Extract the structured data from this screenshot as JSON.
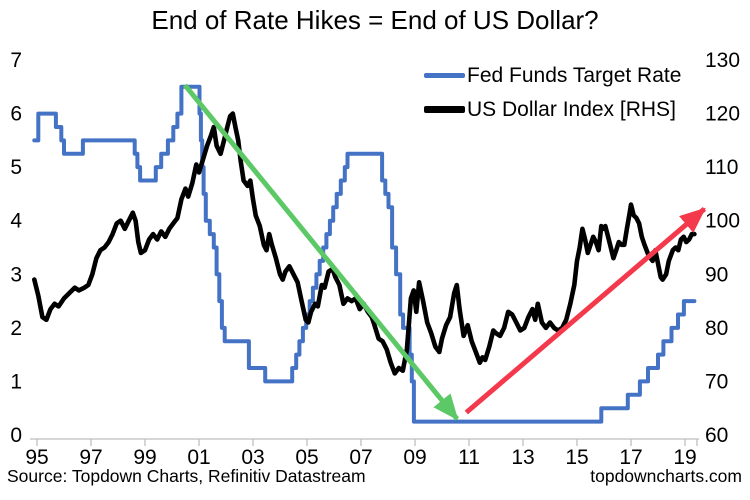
{
  "title": "End of Rate Hikes = End of US Dollar?",
  "footer": {
    "source_text": "Source: Topdown Charts, Refinitiv Datastream",
    "watermark": "topdowncharts.com"
  },
  "chart_data": {
    "type": "line",
    "title": "End of Rate Hikes = End of US Dollar?",
    "legend_position": "top-right",
    "grid": false,
    "axis_color": "#BFBFBF",
    "legend": [
      {
        "label": "Fed Funds Target Rate",
        "color": "#4472C4",
        "thickness": 4.5
      },
      {
        "label": "US Dollar Index [RHS]",
        "color": "#000000",
        "thickness": 7
      }
    ],
    "x_axis": {
      "tick_labels": [
        "95",
        "97",
        "99",
        "01",
        "03",
        "05",
        "07",
        "09",
        "11",
        "13",
        "15",
        "17",
        "19"
      ],
      "tick_years": [
        1995,
        1997,
        1999,
        2001,
        2003,
        2005,
        2007,
        2009,
        2011,
        2013,
        2015,
        2017,
        2019
      ],
      "range": [
        1994.9,
        2019.6
      ]
    },
    "y_left": {
      "ticks": [
        0,
        1,
        2,
        3,
        4,
        5,
        6,
        7
      ],
      "min": 0,
      "max": 7
    },
    "y_right": {
      "ticks": [
        60,
        70,
        80,
        90,
        100,
        110,
        120,
        130
      ],
      "min": 60,
      "max": 130
    },
    "series": [
      {
        "name": "Fed Funds Target Rate",
        "axis": "left",
        "color": "#4472C4",
        "width": 4,
        "step": true,
        "points": [
          [
            1994.9,
            5.5
          ],
          [
            1995.05,
            6.0
          ],
          [
            1995.7,
            5.75
          ],
          [
            1995.9,
            5.5
          ],
          [
            1996.0,
            5.25
          ],
          [
            1996.7,
            5.5
          ],
          [
            1998.62,
            5.25
          ],
          [
            1998.72,
            5.0
          ],
          [
            1998.82,
            4.75
          ],
          [
            1999.4,
            5.0
          ],
          [
            1999.6,
            5.25
          ],
          [
            1999.85,
            5.5
          ],
          [
            2000.05,
            5.75
          ],
          [
            2000.2,
            6.0
          ],
          [
            2000.35,
            6.5
          ],
          [
            2001.02,
            6.0
          ],
          [
            2001.07,
            5.5
          ],
          [
            2001.12,
            5.0
          ],
          [
            2001.17,
            4.5
          ],
          [
            2001.25,
            4.0
          ],
          [
            2001.4,
            3.75
          ],
          [
            2001.55,
            3.5
          ],
          [
            2001.65,
            3.0
          ],
          [
            2001.75,
            2.5
          ],
          [
            2001.85,
            2.0
          ],
          [
            2001.95,
            1.75
          ],
          [
            2002.85,
            1.25
          ],
          [
            2003.45,
            1.0
          ],
          [
            2004.45,
            1.25
          ],
          [
            2004.6,
            1.5
          ],
          [
            2004.72,
            1.75
          ],
          [
            2004.85,
            2.0
          ],
          [
            2004.97,
            2.25
          ],
          [
            2005.1,
            2.5
          ],
          [
            2005.22,
            2.75
          ],
          [
            2005.35,
            3.0
          ],
          [
            2005.47,
            3.25
          ],
          [
            2005.6,
            3.5
          ],
          [
            2005.72,
            3.75
          ],
          [
            2005.85,
            4.0
          ],
          [
            2005.97,
            4.25
          ],
          [
            2006.1,
            4.5
          ],
          [
            2006.25,
            4.75
          ],
          [
            2006.4,
            5.0
          ],
          [
            2006.5,
            5.25
          ],
          [
            2007.78,
            4.75
          ],
          [
            2007.9,
            4.5
          ],
          [
            2008.02,
            4.25
          ],
          [
            2008.15,
            3.5
          ],
          [
            2008.3,
            3.0
          ],
          [
            2008.45,
            2.25
          ],
          [
            2008.56,
            2.0
          ],
          [
            2008.8,
            1.5
          ],
          [
            2008.88,
            1.0
          ],
          [
            2008.96,
            0.25
          ],
          [
            2015.9,
            0.5
          ],
          [
            2016.88,
            0.75
          ],
          [
            2017.33,
            1.0
          ],
          [
            2017.63,
            1.25
          ],
          [
            2018.0,
            1.5
          ],
          [
            2018.2,
            1.75
          ],
          [
            2018.5,
            2.0
          ],
          [
            2018.74,
            2.25
          ],
          [
            2018.96,
            2.5
          ],
          [
            2019.35,
            2.5
          ]
        ]
      },
      {
        "name": "US Dollar Index",
        "axis": "right",
        "color": "#000000",
        "width": 4.6,
        "step": false,
        "points": [
          [
            1994.9,
            89
          ],
          [
            1995.05,
            86
          ],
          [
            1995.2,
            82
          ],
          [
            1995.35,
            81.5
          ],
          [
            1995.5,
            83.5
          ],
          [
            1995.65,
            84.5
          ],
          [
            1995.8,
            84
          ],
          [
            1996.0,
            85.5
          ],
          [
            1996.2,
            86.5
          ],
          [
            1996.4,
            87.5
          ],
          [
            1996.55,
            87
          ],
          [
            1996.75,
            87.5
          ],
          [
            1996.9,
            88
          ],
          [
            1997.05,
            90
          ],
          [
            1997.2,
            93
          ],
          [
            1997.35,
            94.5
          ],
          [
            1997.5,
            95
          ],
          [
            1997.65,
            96
          ],
          [
            1997.8,
            97.5
          ],
          [
            1997.95,
            99.5
          ],
          [
            1998.1,
            100
          ],
          [
            1998.25,
            98.5
          ],
          [
            1998.4,
            100
          ],
          [
            1998.55,
            101.5
          ],
          [
            1998.65,
            100
          ],
          [
            1998.75,
            96
          ],
          [
            1998.85,
            94
          ],
          [
            1999.0,
            94.5
          ],
          [
            1999.15,
            96.5
          ],
          [
            1999.3,
            97.5
          ],
          [
            1999.45,
            96.5
          ],
          [
            1999.6,
            98
          ],
          [
            1999.75,
            97
          ],
          [
            1999.9,
            98.5
          ],
          [
            2000.05,
            99.5
          ],
          [
            2000.2,
            100.5
          ],
          [
            2000.35,
            104
          ],
          [
            2000.5,
            106
          ],
          [
            2000.6,
            104.5
          ],
          [
            2000.75,
            107
          ],
          [
            2000.9,
            110.5
          ],
          [
            2001.0,
            109
          ],
          [
            2001.15,
            111.5
          ],
          [
            2001.3,
            114
          ],
          [
            2001.45,
            116
          ],
          [
            2001.55,
            117.5
          ],
          [
            2001.65,
            114
          ],
          [
            2001.8,
            112.5
          ],
          [
            2001.95,
            115.5
          ],
          [
            2002.05,
            117.5
          ],
          [
            2002.15,
            119.5
          ],
          [
            2002.25,
            120
          ],
          [
            2002.35,
            117.5
          ],
          [
            2002.45,
            115
          ],
          [
            2002.55,
            111
          ],
          [
            2002.65,
            107.5
          ],
          [
            2002.8,
            106.5
          ],
          [
            2002.9,
            107.5
          ],
          [
            2003.0,
            104
          ],
          [
            2003.1,
            101
          ],
          [
            2003.25,
            99
          ],
          [
            2003.4,
            95.5
          ],
          [
            2003.5,
            94.5
          ],
          [
            2003.6,
            97.5
          ],
          [
            2003.7,
            95.5
          ],
          [
            2003.85,
            93
          ],
          [
            2004.0,
            90
          ],
          [
            2004.1,
            89
          ],
          [
            2004.2,
            90.5
          ],
          [
            2004.35,
            91.5
          ],
          [
            2004.5,
            90
          ],
          [
            2004.65,
            88.5
          ],
          [
            2004.8,
            85
          ],
          [
            2004.95,
            81.5
          ],
          [
            2005.05,
            81
          ],
          [
            2005.15,
            83
          ],
          [
            2005.3,
            84.5
          ],
          [
            2005.4,
            84
          ],
          [
            2005.55,
            88
          ],
          [
            2005.65,
            87.5
          ],
          [
            2005.8,
            90.5
          ],
          [
            2005.95,
            91
          ],
          [
            2006.05,
            89.5
          ],
          [
            2006.2,
            88
          ],
          [
            2006.35,
            84.5
          ],
          [
            2006.5,
            85.5
          ],
          [
            2006.65,
            85
          ],
          [
            2006.8,
            85.5
          ],
          [
            2006.95,
            83.5
          ],
          [
            2007.1,
            84.5
          ],
          [
            2007.25,
            83
          ],
          [
            2007.4,
            82
          ],
          [
            2007.5,
            80.5
          ],
          [
            2007.65,
            78
          ],
          [
            2007.8,
            77.5
          ],
          [
            2007.95,
            76
          ],
          [
            2008.1,
            73.5
          ],
          [
            2008.25,
            71.5
          ],
          [
            2008.4,
            72.5
          ],
          [
            2008.55,
            72
          ],
          [
            2008.7,
            76
          ],
          [
            2008.85,
            85.5
          ],
          [
            2008.95,
            87
          ],
          [
            2009.05,
            83
          ],
          [
            2009.15,
            88.5
          ],
          [
            2009.3,
            85
          ],
          [
            2009.45,
            81
          ],
          [
            2009.6,
            79
          ],
          [
            2009.75,
            76.5
          ],
          [
            2009.9,
            75.5
          ],
          [
            2010.0,
            78
          ],
          [
            2010.15,
            80.5
          ],
          [
            2010.3,
            82
          ],
          [
            2010.45,
            86.5
          ],
          [
            2010.55,
            88
          ],
          [
            2010.65,
            83.5
          ],
          [
            2010.8,
            78.5
          ],
          [
            2010.95,
            80.5
          ],
          [
            2011.1,
            77.5
          ],
          [
            2011.25,
            75.5
          ],
          [
            2011.4,
            73.5
          ],
          [
            2011.5,
            74.5
          ],
          [
            2011.6,
            74
          ],
          [
            2011.75,
            76.5
          ],
          [
            2011.9,
            79.5
          ],
          [
            2012.0,
            79
          ],
          [
            2012.15,
            78.5
          ],
          [
            2012.3,
            80
          ],
          [
            2012.45,
            83
          ],
          [
            2012.6,
            82.5
          ],
          [
            2012.75,
            81
          ],
          [
            2012.9,
            79.5
          ],
          [
            2013.05,
            80
          ],
          [
            2013.2,
            82
          ],
          [
            2013.35,
            83.5
          ],
          [
            2013.45,
            81.5
          ],
          [
            2013.55,
            84.5
          ],
          [
            2013.7,
            81
          ],
          [
            2013.85,
            80
          ],
          [
            2014.0,
            81
          ],
          [
            2014.15,
            80
          ],
          [
            2014.3,
            79.5
          ],
          [
            2014.45,
            80
          ],
          [
            2014.6,
            81.5
          ],
          [
            2014.75,
            84.5
          ],
          [
            2014.9,
            88
          ],
          [
            2015.0,
            92.5
          ],
          [
            2015.1,
            95
          ],
          [
            2015.2,
            98.5
          ],
          [
            2015.3,
            96.5
          ],
          [
            2015.4,
            94
          ],
          [
            2015.5,
            95.5
          ],
          [
            2015.6,
            97
          ],
          [
            2015.7,
            96
          ],
          [
            2015.8,
            94.5
          ],
          [
            2015.9,
            99
          ],
          [
            2015.97,
            98.5
          ],
          [
            2016.05,
            99
          ],
          [
            2016.15,
            97
          ],
          [
            2016.25,
            95
          ],
          [
            2016.35,
            93
          ],
          [
            2016.45,
            94.5
          ],
          [
            2016.55,
            96
          ],
          [
            2016.65,
            95.5
          ],
          [
            2016.75,
            95.5
          ],
          [
            2016.85,
            98.5
          ],
          [
            2016.95,
            101.5
          ],
          [
            2017.0,
            103
          ],
          [
            2017.1,
            101
          ],
          [
            2017.2,
            100.5
          ],
          [
            2017.3,
            99.5
          ],
          [
            2017.4,
            97
          ],
          [
            2017.5,
            95.5
          ],
          [
            2017.65,
            93.5
          ],
          [
            2017.8,
            92.5
          ],
          [
            2017.9,
            94.5
          ],
          [
            2018.0,
            92
          ],
          [
            2018.1,
            89.5
          ],
          [
            2018.17,
            89
          ],
          [
            2018.3,
            90
          ],
          [
            2018.4,
            92.5
          ],
          [
            2018.55,
            94.5
          ],
          [
            2018.65,
            95
          ],
          [
            2018.75,
            94.5
          ],
          [
            2018.85,
            96.5
          ],
          [
            2018.95,
            97
          ],
          [
            2019.05,
            96
          ],
          [
            2019.15,
            96.5
          ],
          [
            2019.25,
            97.5
          ],
          [
            2019.35,
            97.5
          ]
        ]
      }
    ],
    "annotations": [
      {
        "name": "falling-rates-arrow",
        "type": "arrow",
        "color": "#5CC966",
        "width": 5,
        "axis": "left",
        "from": [
          2000.48,
          6.53
        ],
        "to": [
          2010.56,
          0.3
        ]
      },
      {
        "name": "rising-dollar-arrow",
        "type": "arrow",
        "color": "#F4394C",
        "width": 5,
        "axis": "left",
        "from": [
          2010.9,
          0.42
        ],
        "to": [
          2019.72,
          4.22
        ]
      }
    ]
  }
}
